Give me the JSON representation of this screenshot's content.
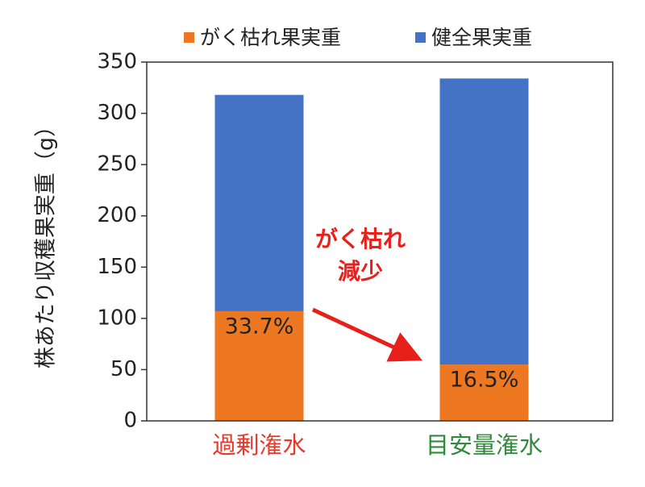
{
  "chart_data": {
    "type": "stacked_bar",
    "y_label": "株あたり収穫果実重（g）",
    "categories": [
      "過剰潅水",
      "目安量潅水"
    ],
    "category_colors": [
      "#e8382c",
      "#2e8b3a"
    ],
    "series": [
      {
        "name": "がく枯れ果実重",
        "color": "#ee7722",
        "values": [
          107,
          55
        ]
      },
      {
        "name": "健全果実重",
        "color": "#4472c4",
        "values": [
          211,
          279
        ]
      }
    ],
    "share_labels": [
      "33.7%",
      "16.5%"
    ],
    "annotation": {
      "lines": [
        "がく枯れ",
        "減少"
      ],
      "color": "#e8201c"
    },
    "ylim": [
      0,
      350
    ],
    "yticks": [
      0,
      50,
      100,
      150,
      200,
      250,
      300,
      350
    ],
    "legend": "top"
  }
}
